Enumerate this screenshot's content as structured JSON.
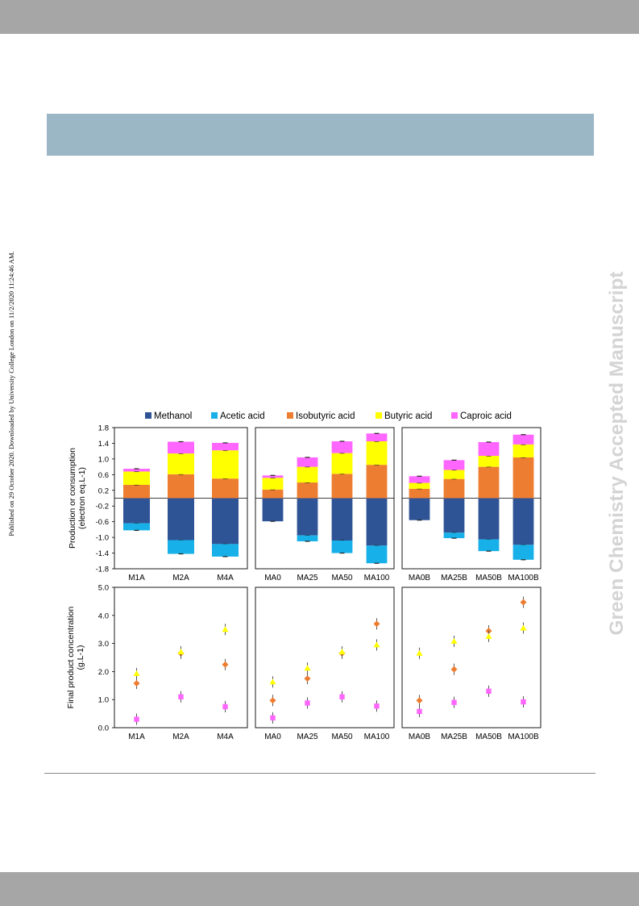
{
  "page": {
    "side_note": "Published on 29 October 2020. Downloaded by University College London on 11/2/2020 11:24:46 AM.",
    "watermark": "Green Chemistry Accepted Manuscript"
  },
  "colors": {
    "Methanol": "#2f5496",
    "Acetic acid": "#17b0e8",
    "Isobutyric acid": "#ed7d31",
    "Butyric acid": "#ffff00",
    "Caproic acid": "#ff66ff"
  },
  "legend": [
    "Methanol",
    "Acetic acid",
    "Isobutyric acid",
    "Butyric acid",
    "Caproic acid"
  ],
  "chart_data": [
    {
      "type": "bar",
      "stacked": true,
      "ylabel": "Production or consumption\n(electron eq.L-1)",
      "ylim": [
        -1.8,
        1.8
      ],
      "yticks": [
        "1.8",
        "1.4",
        "1.0",
        "0.6",
        "0.2",
        "-0.2",
        "-0.6",
        "-1.0",
        "-1.4",
        "-1.8"
      ],
      "legend_position": "top",
      "groups": [
        {
          "categories": [
            "M1A",
            "M2A",
            "M4A"
          ],
          "series": [
            {
              "name": "Methanol",
              "values": [
                -0.64,
                -1.07,
                -1.17
              ]
            },
            {
              "name": "Acetic acid",
              "values": [
                -0.18,
                -0.35,
                -0.32
              ]
            },
            {
              "name": "Isobutyric acid",
              "values": [
                0.34,
                0.61,
                0.5
              ]
            },
            {
              "name": "Butyric acid",
              "values": [
                0.34,
                0.53,
                0.72
              ]
            },
            {
              "name": "Caproic acid",
              "values": [
                0.07,
                0.3,
                0.19
              ]
            }
          ]
        },
        {
          "categories": [
            "MA0",
            "MA25",
            "MA50",
            "MA100"
          ],
          "series": [
            {
              "name": "Methanol",
              "values": [
                -0.59,
                -0.95,
                -1.08,
                -1.21
              ]
            },
            {
              "name": "Acetic acid",
              "values": [
                0.0,
                -0.15,
                -0.32,
                -0.45
              ]
            },
            {
              "name": "Isobutyric acid",
              "values": [
                0.22,
                0.4,
                0.62,
                0.85
              ]
            },
            {
              "name": "Butyric acid",
              "values": [
                0.3,
                0.4,
                0.53,
                0.6
              ]
            },
            {
              "name": "Caproic acid",
              "values": [
                0.06,
                0.24,
                0.3,
                0.2
              ]
            }
          ]
        },
        {
          "categories": [
            "MA0B",
            "MA25B",
            "MA50B",
            "MA100B"
          ],
          "series": [
            {
              "name": "Methanol",
              "values": [
                -0.56,
                -0.88,
                -1.05,
                -1.19
              ]
            },
            {
              "name": "Acetic acid",
              "values": [
                0.0,
                -0.14,
                -0.3,
                -0.38
              ]
            },
            {
              "name": "Isobutyric acid",
              "values": [
                0.24,
                0.49,
                0.8,
                1.04
              ]
            },
            {
              "name": "Butyric acid",
              "values": [
                0.15,
                0.23,
                0.28,
                0.33
              ]
            },
            {
              "name": "Caproic acid",
              "values": [
                0.17,
                0.25,
                0.35,
                0.25
              ]
            }
          ]
        }
      ]
    },
    {
      "type": "scatter",
      "ylabel": "Final product concentration\n(g.L-1)",
      "ylim": [
        0,
        5
      ],
      "yticks": [
        "5.0",
        "4.0",
        "3.0",
        "2.0",
        "1.0",
        "0.0"
      ],
      "groups": [
        {
          "categories": [
            "M1A",
            "M2A",
            "M4A"
          ],
          "series": [
            {
              "name": "Isobutyric acid",
              "values": [
                1.58,
                2.65,
                2.25
              ]
            },
            {
              "name": "Butyric acid",
              "values": [
                1.93,
                2.7,
                3.5
              ]
            },
            {
              "name": "Caproic acid",
              "values": [
                0.3,
                1.1,
                0.75
              ]
            }
          ]
        },
        {
          "categories": [
            "MA0",
            "MA25",
            "MA50",
            "MA100"
          ],
          "series": [
            {
              "name": "Isobutyric acid",
              "values": [
                0.97,
                1.75,
                2.65,
                3.7
              ]
            },
            {
              "name": "Butyric acid",
              "values": [
                1.63,
                2.12,
                2.7,
                2.95
              ]
            },
            {
              "name": "Caproic acid",
              "values": [
                0.35,
                0.88,
                1.1,
                0.77
              ]
            }
          ]
        },
        {
          "categories": [
            "MA0B",
            "MA25B",
            "MA50B",
            "MA100B"
          ],
          "series": [
            {
              "name": "Isobutyric acid",
              "values": [
                0.97,
                2.08,
                3.45,
                4.47
              ]
            },
            {
              "name": "Butyric acid",
              "values": [
                2.65,
                3.08,
                3.25,
                3.55
              ]
            },
            {
              "name": "Caproic acid",
              "values": [
                0.58,
                0.9,
                1.3,
                0.92
              ]
            }
          ]
        }
      ]
    }
  ]
}
